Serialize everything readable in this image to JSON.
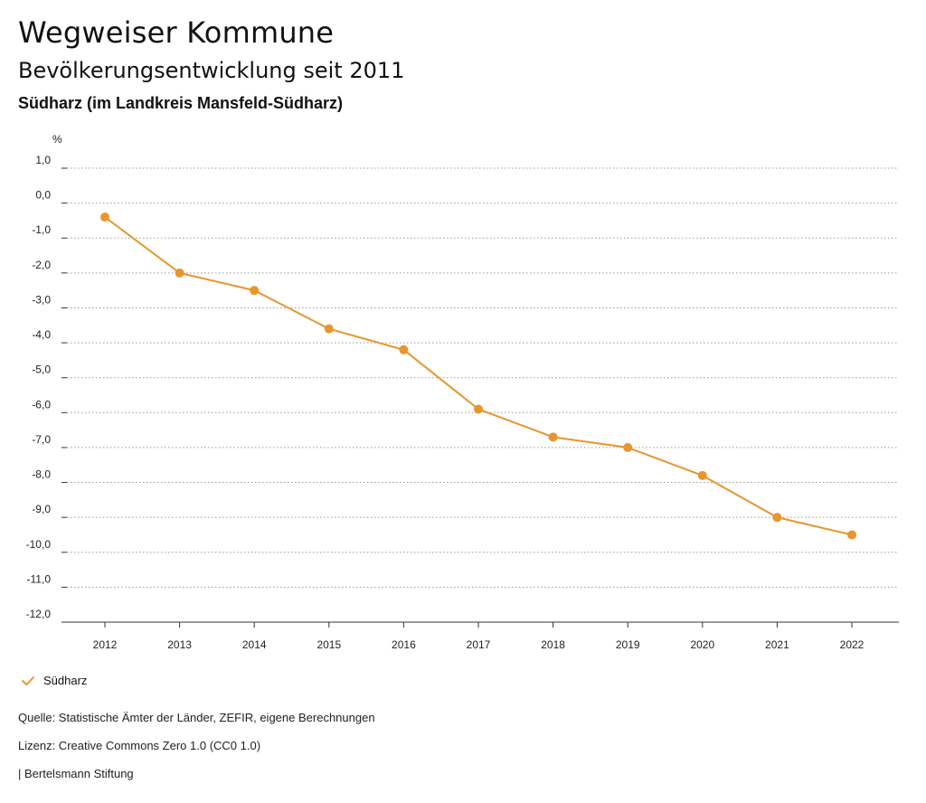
{
  "header": {
    "title": "Wegweiser Kommune",
    "subtitle": "Bevölkerungsentwicklung seit 2011",
    "region": "Südharz (im Landkreis Mansfeld-Südharz)"
  },
  "chart_data": {
    "type": "line",
    "title": "Bevölkerungsentwicklung seit 2011",
    "ylabel": "%",
    "xlabel": "",
    "categories": [
      "2012",
      "2013",
      "2014",
      "2015",
      "2016",
      "2017",
      "2018",
      "2019",
      "2020",
      "2021",
      "2022"
    ],
    "series": [
      {
        "name": "Südharz",
        "values": [
          -0.4,
          -2.0,
          -2.5,
          -3.6,
          -4.2,
          -5.9,
          -6.7,
          -7.0,
          -7.8,
          -9.0,
          -9.5
        ]
      }
    ],
    "ylim": [
      -12,
      1
    ],
    "yticks": [
      1,
      0,
      -1,
      -2,
      -3,
      -4,
      -5,
      -6,
      -7,
      -8,
      -9,
      -10,
      -11,
      -12
    ],
    "ytick_labels": [
      "1,0",
      "0,0",
      "-1,0",
      "-2,0",
      "-3,0",
      "-4,0",
      "-5,0",
      "-6,0",
      "-7,0",
      "-8,0",
      "-9,0",
      "-10,0",
      "-11,0",
      "-12,0"
    ],
    "grid": true,
    "legend_position": "bottom-left"
  },
  "colors": {
    "series": "#e8952e",
    "grid": "#999999",
    "axis": "#333333"
  },
  "legend": {
    "label": "Südharz",
    "icon": "check-icon"
  },
  "footer": {
    "source": "Quelle: Statistische Ämter der Länder, ZEFIR, eigene Berechnungen",
    "license": "Lizenz: Creative Commons Zero 1.0 (CC0 1.0)",
    "publisher": "| Bertelsmann Stiftung"
  }
}
